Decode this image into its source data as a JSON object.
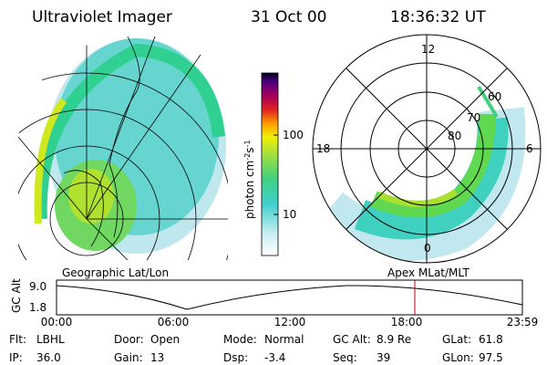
{
  "header": {
    "title": "Ultraviolet Imager",
    "date": "31 Oct 00",
    "time": "18:36:32 UT"
  },
  "colorbar": {
    "label": [
      "photon cm",
      "-2",
      "s",
      "-1"
    ],
    "ticks": [
      "100",
      "10"
    ]
  },
  "polar": {
    "mlt": [
      "12",
      "18",
      "6",
      "0"
    ],
    "mlat": [
      "80",
      "70",
      "60"
    ]
  },
  "altitude": {
    "left_label": "Geographic Lat/Lon",
    "right_label": "Apex MLat/MLT",
    "axis_label": "GC Alt",
    "yticks": [
      "9.0",
      "1.8"
    ],
    "xticks": [
      "00:00",
      "06:00",
      "12:00",
      "18:00",
      "23:59"
    ]
  },
  "info": [
    [
      [
        "Flt:",
        "LBHL"
      ],
      [
        "Door:",
        "Open"
      ],
      [
        "Mode:",
        "Normal"
      ],
      [
        "GC Alt:",
        "8.9 Re"
      ],
      [
        "GLat:",
        "61.8"
      ]
    ],
    [
      [
        "IP:",
        "36.0"
      ],
      [
        "Gain:",
        "13"
      ],
      [
        "Dsp:",
        "-3.4"
      ],
      [
        "Seq:",
        "39"
      ],
      [
        "GLon:",
        "97.5"
      ]
    ]
  ]
}
